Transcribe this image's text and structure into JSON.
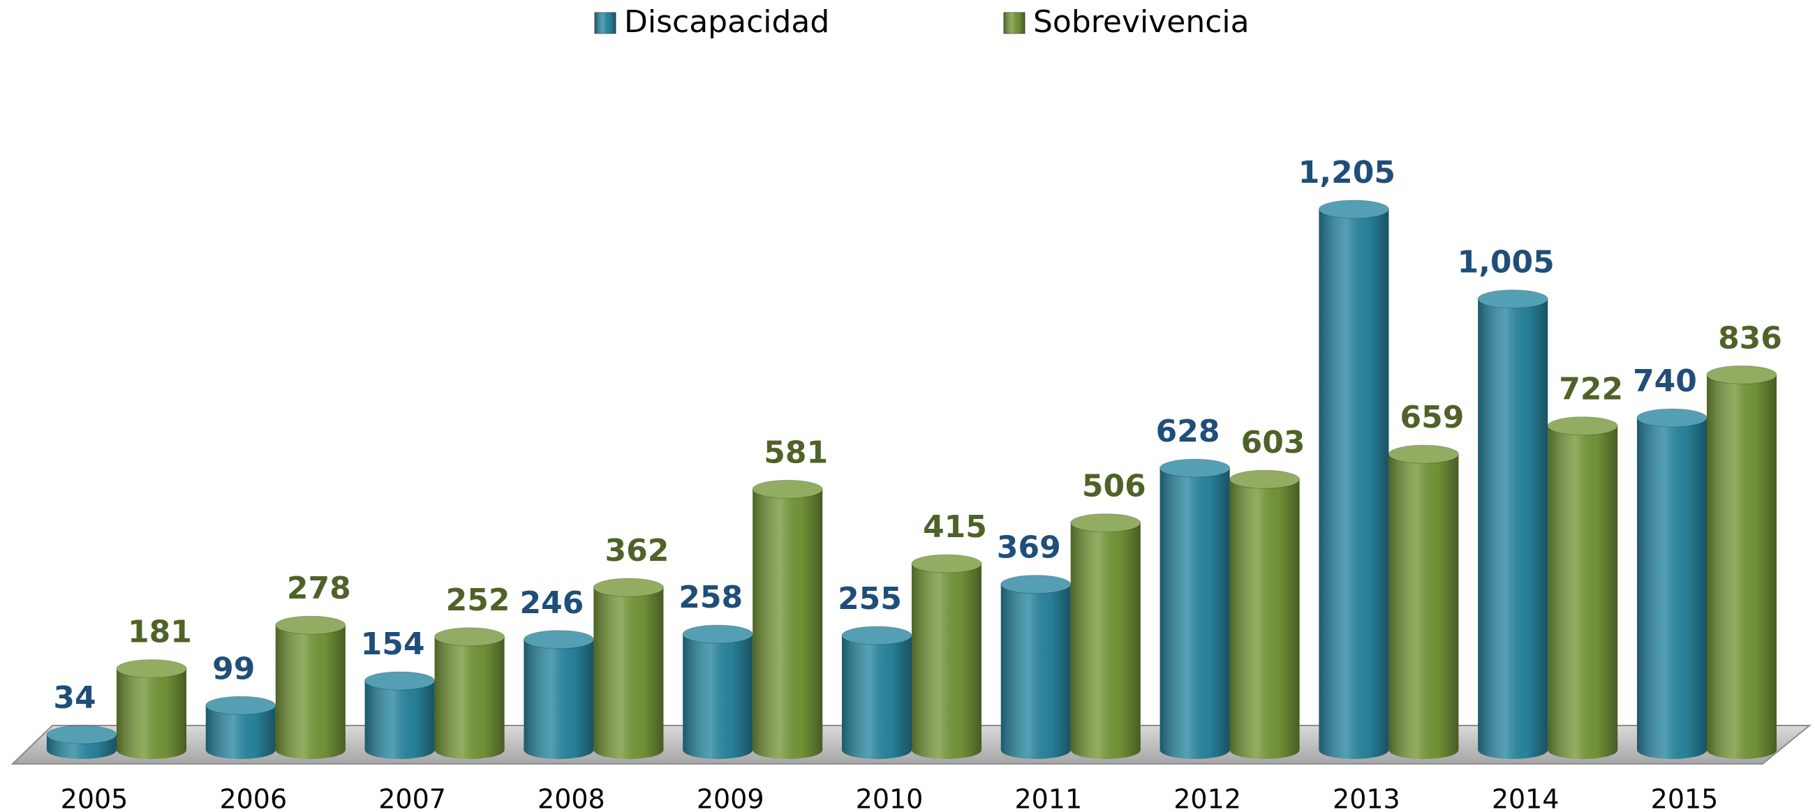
{
  "chart_data": {
    "type": "bar3d",
    "categories": [
      "2005",
      "2006",
      "2007",
      "2008",
      "2009",
      "2010",
      "2011",
      "2012",
      "2013",
      "2014",
      "2015"
    ],
    "series": [
      {
        "name": "Discapacidad",
        "color": "#2a88a2",
        "label_color": "#1f4e79",
        "values": [
          34,
          99,
          154,
          246,
          258,
          255,
          369,
          628,
          1205,
          1005,
          740
        ],
        "value_labels": [
          "34",
          "99",
          "154",
          "246",
          "258",
          "255",
          "369",
          "628",
          "1,205",
          "1,005",
          "740"
        ]
      },
      {
        "name": "Sobrevivencia",
        "color": "#77993a",
        "label_color": "#4f6228",
        "values": [
          181,
          278,
          252,
          362,
          581,
          415,
          506,
          603,
          659,
          722,
          836
        ]
      }
    ],
    "legend": "top"
  }
}
